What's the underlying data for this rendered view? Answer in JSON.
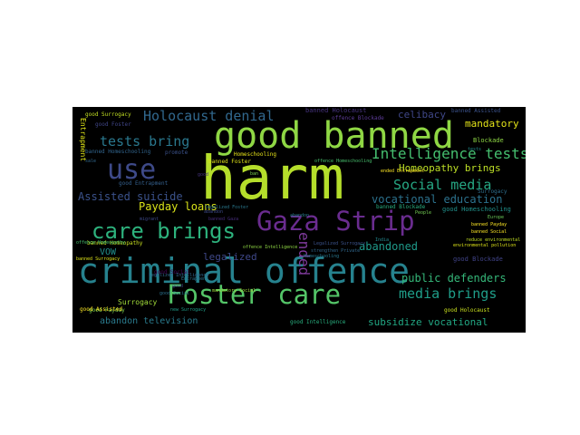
{
  "word_cloud": {
    "background": "#000000",
    "words": [
      {
        "text": "harm",
        "color": "#b5de2b"
      },
      {
        "text": "criminal offence",
        "color": "#26828e"
      },
      {
        "text": "good banned",
        "color": "#8fd744"
      },
      {
        "text": "Gaza Strip",
        "color": "#6a2c8f"
      },
      {
        "text": "Foster care",
        "color": "#54c568"
      },
      {
        "text": "care brings",
        "color": "#2db27d"
      },
      {
        "text": "use",
        "color": "#3e4a89"
      },
      {
        "text": "Holocaust denial",
        "color": "#31688e"
      },
      {
        "text": "Intelligence tests",
        "color": "#45bf6f"
      },
      {
        "text": "tests bring",
        "color": "#2a788e"
      },
      {
        "text": "Social media",
        "color": "#26a884"
      },
      {
        "text": "media brings",
        "color": "#1f9e89"
      },
      {
        "text": "ended",
        "color": "#7e3a9b"
      },
      {
        "text": "Assisted suicide",
        "color": "#3b528b"
      },
      {
        "text": "vocational education",
        "color": "#2c728e"
      },
      {
        "text": "Payday loans",
        "color": "#d8e219"
      },
      {
        "text": "public defenders",
        "color": "#35b779"
      },
      {
        "text": "abandoned",
        "color": "#1f9a8a"
      },
      {
        "text": "Homeopathy brings",
        "color": "#bddf26"
      },
      {
        "text": "celibacy",
        "color": "#3f4788"
      },
      {
        "text": "mandatory",
        "color": "#e4e419"
      },
      {
        "text": "legalized",
        "color": "#3f4889"
      },
      {
        "text": "subsidize vocational",
        "color": "#22a884"
      },
      {
        "text": "abandon television",
        "color": "#2a7b8e"
      },
      {
        "text": "VOW",
        "color": "#218f8d"
      },
      {
        "text": "Surrogacy",
        "color": "#a0da39"
      },
      {
        "text": "Entrapment",
        "color": "#dde318"
      },
      {
        "text": "banned Holocaust",
        "color": "#46337e"
      },
      {
        "text": "offence Blockade",
        "color": "#5e3c99"
      },
      {
        "text": "Blockade",
        "color": "#8dd544"
      },
      {
        "text": "Surrogacy",
        "color": "#2e6f8e"
      },
      {
        "text": "good Surrogacy",
        "color": "#c2df23"
      },
      {
        "text": "good Foster",
        "color": "#404688"
      },
      {
        "text": "banned Assisted",
        "color": "#3b528b"
      },
      {
        "text": "banned Homeschooling",
        "color": "#32658e"
      },
      {
        "text": "good Payday",
        "color": "#7ad151"
      },
      {
        "text": "good Entrapment",
        "color": "#35608d"
      },
      {
        "text": "good Homeschooling",
        "color": "#21918c"
      },
      {
        "text": "good Social",
        "color": "#440154"
      },
      {
        "text": "good Blockade",
        "color": "#404387"
      },
      {
        "text": "banned Blockade",
        "color": "#28ae80"
      },
      {
        "text": "good Intelligence",
        "color": "#29af7f"
      },
      {
        "text": "good Holocaust",
        "color": "#cae11f"
      },
      {
        "text": "good Assisted",
        "color": "#fde725"
      },
      {
        "text": "banned Homeopathy",
        "color": "#c8e020"
      },
      {
        "text": "banned Foster",
        "color": "#dfe318"
      },
      {
        "text": "Homeschooling",
        "color": "#e7e419"
      },
      {
        "text": "promote",
        "color": "#3b528b"
      },
      {
        "text": "offence Homeschooling",
        "color": "#48c16e"
      },
      {
        "text": "ended Entrapment",
        "color": "#fde725"
      },
      {
        "text": "India",
        "color": "#23898e"
      },
      {
        "text": "People",
        "color": "#75d054"
      },
      {
        "text": "Europe",
        "color": "#6ccd5a"
      },
      {
        "text": "migrant",
        "color": "#3e4989"
      },
      {
        "text": "sale",
        "color": "#31688e"
      },
      {
        "text": "banned Surrogacy",
        "color": "#dde318"
      },
      {
        "text": "Homeschooling",
        "color": "#2a788e"
      },
      {
        "text": "Entrapment",
        "color": "#2c728e"
      },
      {
        "text": "Legalized Surrogacy",
        "color": "#3b528b"
      },
      {
        "text": "strengthen Private",
        "color": "#31688e"
      },
      {
        "text": "offence Intelligence",
        "color": "#8fd744"
      },
      {
        "text": "banned Social",
        "color": "#fde725"
      },
      {
        "text": "good Social",
        "color": "#2c728e"
      },
      {
        "text": "mandatory Social",
        "color": "#9fda3a"
      },
      {
        "text": "banned Payday",
        "color": "#fde725"
      },
      {
        "text": "offence Homeopathy",
        "color": "#48c16e"
      },
      {
        "text": "banned Gaza",
        "color": "#472d7b"
      },
      {
        "text": "legalized Foster",
        "color": "#2a788e"
      },
      {
        "text": "ban",
        "color": "#7ad151"
      },
      {
        "text": "abandon",
        "color": "#3e4a89"
      },
      {
        "text": "Legalized Intelligence",
        "color": "#31688e"
      },
      {
        "text": "reduce environmental",
        "color": "#c2df23"
      },
      {
        "text": "environmental pollution",
        "color": "#dde318"
      },
      {
        "text": "abandon",
        "color": "#287d8e"
      },
      {
        "text": "good",
        "color": "#3f4788"
      },
      {
        "text": "tests",
        "color": "#218e8d"
      },
      {
        "text": "new Surrogacy",
        "color": "#1f9e89"
      },
      {
        "text": "good",
        "color": "#46337e"
      }
    ]
  }
}
